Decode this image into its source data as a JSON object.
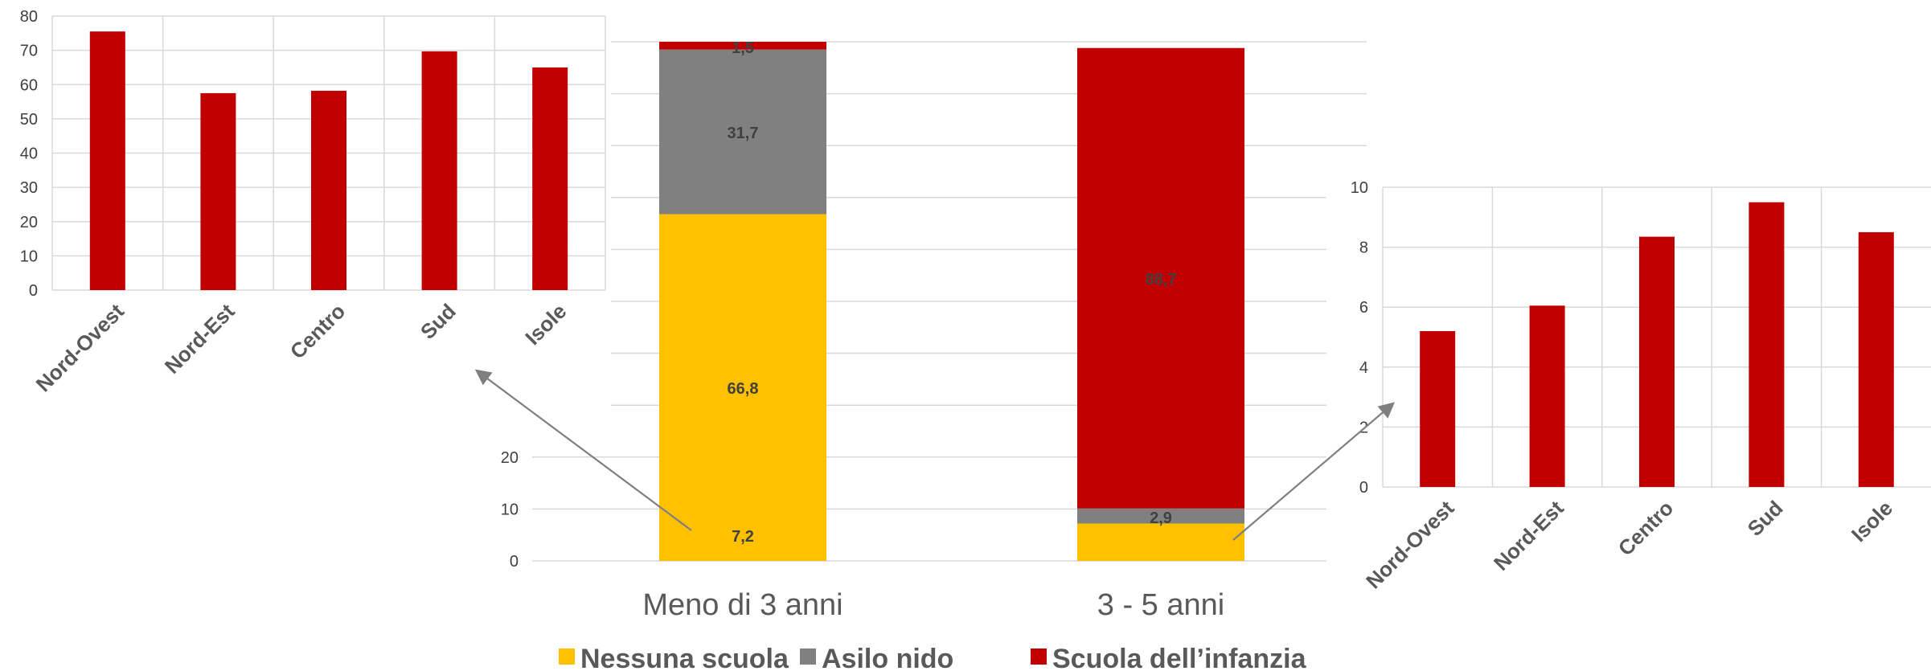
{
  "colors": {
    "nessuna": "#ffc000",
    "asilo": "#808080",
    "infanzia": "#c00000",
    "grid": "#d9d9d9"
  },
  "chart_data": [
    {
      "id": "left-regional",
      "type": "bar",
      "categories": [
        "Nord-Ovest",
        "Nord-Est",
        "Centro",
        "Sud",
        "Isole"
      ],
      "values": [
        75.5,
        57.5,
        58.2,
        69.7,
        65.0
      ],
      "ylim": [
        0,
        80
      ],
      "yticks": [
        "0",
        "10",
        "20",
        "30",
        "40",
        "50",
        "60",
        "70",
        "80"
      ],
      "grid": true
    },
    {
      "id": "main-stacked",
      "type": "bar",
      "stacked": true,
      "categories": [
        "Meno di 3 anni",
        "3 - 5 anni"
      ],
      "series": [
        {
          "name": "Nessuna scuola",
          "values": [
            66.8,
            7.2
          ],
          "labels": [
            "66,8",
            "7,2"
          ]
        },
        {
          "name": "Asilo nido",
          "values": [
            31.7,
            2.9
          ],
          "labels": [
            "31,7",
            "2,9"
          ]
        },
        {
          "name": "Scuola dell’infanzia",
          "values": [
            1.5,
            88.7
          ],
          "labels": [
            "1,5",
            "88,7"
          ]
        }
      ],
      "yticks": [
        "0",
        "10",
        "20"
      ],
      "ylim": [
        0,
        100
      ],
      "legend": "bottom",
      "grid": true
    },
    {
      "id": "right-regional",
      "type": "bar",
      "categories": [
        "Nord-Ovest",
        "Nord-Est",
        "Centro",
        "Sud",
        "Isole"
      ],
      "values": [
        5.2,
        6.05,
        8.35,
        9.5,
        8.5
      ],
      "ylim": [
        0,
        10
      ],
      "yticks": [
        "0",
        "2",
        "4",
        "6",
        "8",
        "10"
      ],
      "grid": true
    }
  ]
}
